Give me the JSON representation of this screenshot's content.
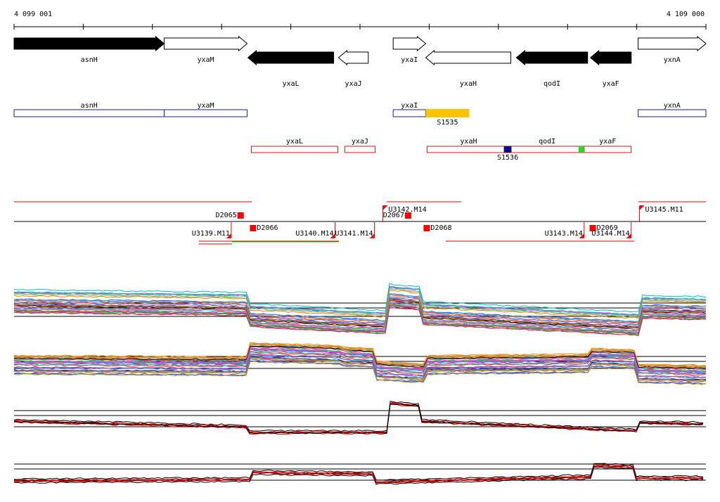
{
  "axis": {
    "start_label": "4 099 001",
    "end_label": "4 109 000",
    "start": 4099001,
    "end": 4109000
  },
  "colors": {
    "gene_fill": "#000000",
    "annot_pos": "#1a1aa8",
    "annot_neg": "#d01818",
    "feature_yellow": "#ffc400",
    "feature_blue": "#0a0a8c",
    "feature_green": "#22dd22",
    "marker": "#ff0000",
    "expr_red": "#e00000",
    "expr_black": "#000000"
  },
  "genes": [
    {
      "label": "asnH",
      "strand": "+",
      "filled": true,
      "start": 4099001,
      "end": 4101170
    },
    {
      "label": "yxaM",
      "strand": "+",
      "filled": false,
      "start": 4101170,
      "end": 4102370
    },
    {
      "label": "yxaL",
      "strand": "-",
      "filled": true,
      "start": 4102380,
      "end": 4103620
    },
    {
      "label": "yxaJ",
      "strand": "-",
      "filled": false,
      "start": 4103690,
      "end": 4104120
    },
    {
      "label": "yxaI",
      "strand": "+",
      "filled": false,
      "start": 4104480,
      "end": 4104950
    },
    {
      "label": "yxaH",
      "strand": "-",
      "filled": false,
      "start": 4104950,
      "end": 4106180
    },
    {
      "label": "qodI",
      "strand": "-",
      "filled": true,
      "start": 4106260,
      "end": 4107290
    },
    {
      "label": "yxaF",
      "strand": "-",
      "filled": true,
      "start": 4107330,
      "end": 4107920
    },
    {
      "label": "yxnA",
      "strand": "+",
      "filled": false,
      "start": 4108020,
      "end": 4109000
    }
  ],
  "annotations_plus": [
    {
      "label": "asnH",
      "start": 4099001,
      "end": 4101170
    },
    {
      "label": "yxaM",
      "start": 4101170,
      "end": 4102370
    },
    {
      "label": "yxaI",
      "start": 4104480,
      "end": 4104950
    },
    {
      "label": "yxnA",
      "start": 4108020,
      "end": 4109000
    }
  ],
  "annotations_minus": [
    {
      "label": "yxaL",
      "start": 4102430,
      "end": 4103680
    },
    {
      "label": "yxaJ",
      "start": 4103780,
      "end": 4104220
    },
    {
      "label": "yxaH",
      "start": 4104970,
      "end": 4106170
    },
    {
      "label": "qodI",
      "start": 4106170,
      "end": 4107240
    },
    {
      "label": "yxaF",
      "start": 4107240,
      "end": 4107920
    }
  ],
  "features": [
    {
      "label": "S1535",
      "color_key": "feature_yellow",
      "row": "plus",
      "start": 4104950,
      "end": 4105580
    },
    {
      "label": "S1536",
      "color_key": "feature_blue",
      "row": "minus",
      "start": 4106080,
      "end": 4106190
    },
    {
      "label": "",
      "color_key": "feature_green",
      "row": "minus",
      "start": 4107160,
      "end": 4107240
    }
  ],
  "upper_markers": [
    {
      "label": "D2065",
      "pos": 4102270,
      "side": "left"
    },
    {
      "label": "U3142.M14",
      "pos": 4104330,
      "side": "right"
    },
    {
      "label": "D2067",
      "pos": 4104690,
      "side": "left"
    },
    {
      "label": "U3145.M11",
      "pos": 4108040,
      "side": "right"
    }
  ],
  "lower_markers": [
    {
      "label": "D2066",
      "pos": 4102450,
      "side": "right"
    },
    {
      "label": "U3139.M11",
      "pos": 4102140,
      "side": "left"
    },
    {
      "label": "U3140.M14",
      "pos": 4103640,
      "side": "left"
    },
    {
      "label": "U3141.M14",
      "pos": 4104210,
      "side": "left"
    },
    {
      "label": "D2068",
      "pos": 4104960,
      "side": "right"
    },
    {
      "label": "U3143.M14",
      "pos": 4107240,
      "side": "left"
    },
    {
      "label": "D2069",
      "pos": 4107360,
      "side": "right"
    },
    {
      "label": "U3144.M14",
      "pos": 4107920,
      "side": "left"
    }
  ]
}
